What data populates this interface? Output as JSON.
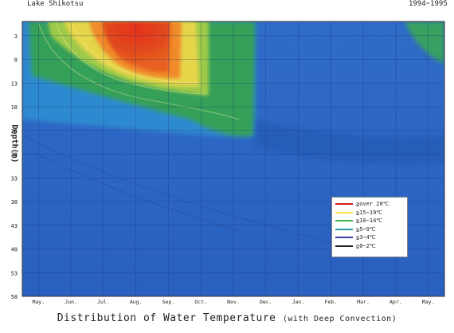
{
  "header": {
    "lake": "Lake  Shikotsu",
    "period": "1994~1995"
  },
  "chart_data": {
    "type": "heatmap",
    "title": "Distribution of Water Temperature",
    "subtitle": "(with Deep Convection)",
    "ylabel": "Depth(m)",
    "xlabel": "",
    "x_ticks": [
      "May.",
      "Jun.",
      "Jul.",
      "Aug.",
      "Sep.",
      "Oct.",
      "Nov.",
      "Dec.",
      "Jan.",
      "Feb.",
      "Mar.",
      "Apr.",
      "May."
    ],
    "y_ticks": [
      "3",
      "8",
      "13",
      "18",
      "23",
      "28",
      "33",
      "38",
      "43",
      "48",
      "53",
      "58"
    ],
    "ylim": [
      0,
      58
    ],
    "y_inverted": true,
    "grid": true,
    "legend_position": "bottom-right",
    "legend": [
      {
        "label": "≧over 20℃",
        "color": "#d81e1e"
      },
      {
        "label": "≧15~19℃",
        "color": "#f2e64a"
      },
      {
        "label": "≧10~14℃",
        "color": "#3fb04a"
      },
      {
        "label": "≧5~9℃",
        "color": "#2a9d9d"
      },
      {
        "label": "≧3~4℃",
        "color": "#3a3fa8"
      },
      {
        "label": "≧0~2℃",
        "color": "#222222"
      }
    ],
    "temperature_zones": [
      {
        "class": "over 20℃",
        "month_start": 2.2,
        "month_end": 4.3,
        "depth_top": 0,
        "depth_bottom": 10
      },
      {
        "class": "15~19℃",
        "month_start": 1.0,
        "month_end": 5.0,
        "depth_top": 0,
        "depth_bottom": 13
      },
      {
        "class": "10~14℃",
        "month_start": 0.5,
        "month_end": 6.2,
        "depth_top": 0,
        "depth_bottom": 22
      },
      {
        "class": "5~9℃",
        "month_start": 0,
        "month_end": 12,
        "depth_top": 0,
        "depth_bottom": 58
      },
      {
        "class": "10~14℃",
        "month_start": 11.4,
        "month_end": 12,
        "depth_top": 0,
        "depth_bottom": 5
      }
    ]
  }
}
